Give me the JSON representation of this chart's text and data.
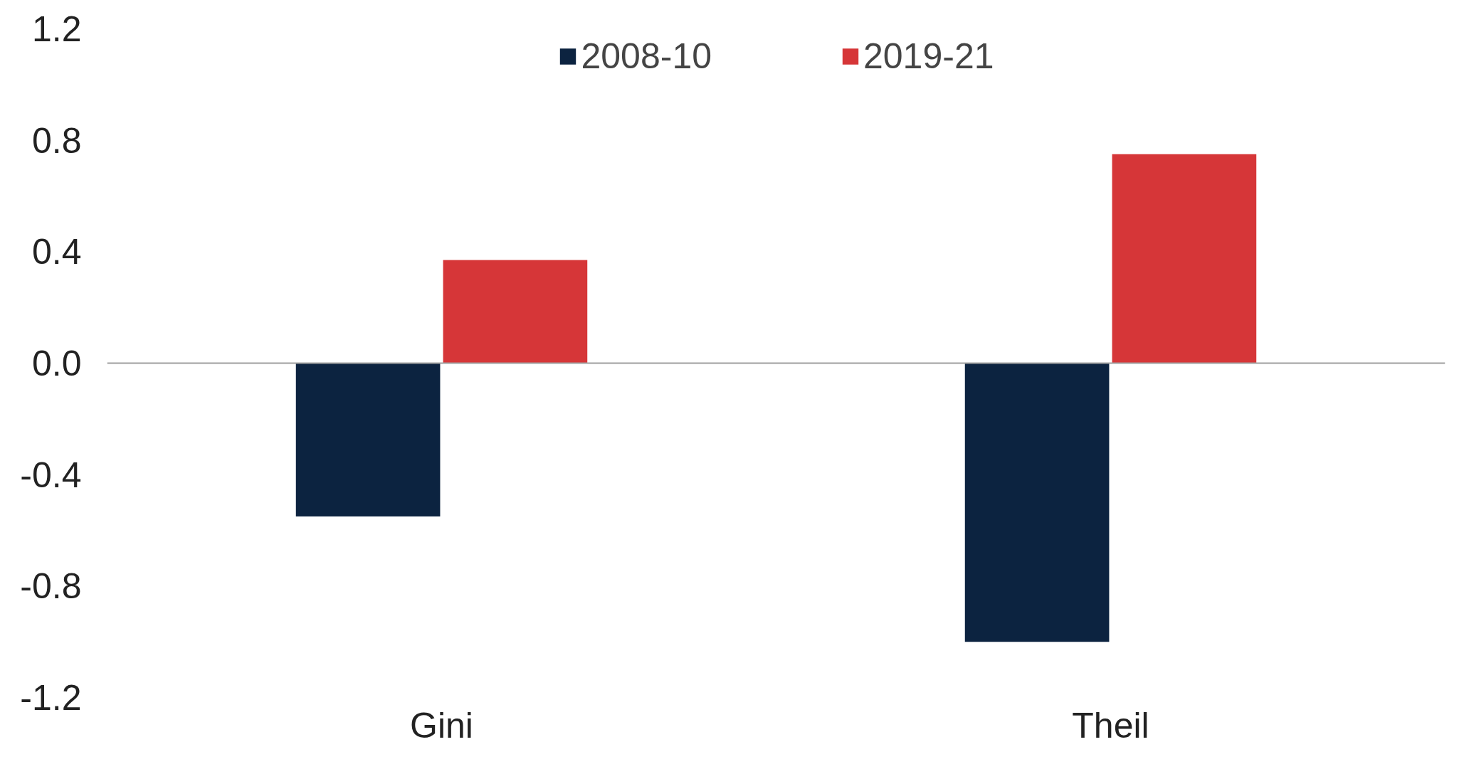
{
  "chart_data": {
    "type": "bar",
    "categories": [
      "Gini",
      "Theil"
    ],
    "series": [
      {
        "name": "2008-10",
        "color": "#0c2340",
        "values": [
          -0.55,
          -1.0
        ]
      },
      {
        "name": "2019-21",
        "color": "#d63638",
        "values": [
          0.37,
          0.75
        ]
      }
    ],
    "ylim": [
      -1.2,
      1.2
    ],
    "yticks": [
      {
        "value": -1.2,
        "label": "-1.2"
      },
      {
        "value": -0.8,
        "label": "-0.8"
      },
      {
        "value": -0.4,
        "label": "-0.4"
      },
      {
        "value": 0,
        "label": "0.0"
      },
      {
        "value": 0.4,
        "label": "0.4"
      },
      {
        "value": 0.8,
        "label": "0.8"
      },
      {
        "value": 1.2,
        "label": "1.2"
      }
    ],
    "grid": false,
    "legend": "top",
    "ref_lines": [
      {
        "axis": "y",
        "value": 0,
        "color": "#a0a0a0"
      }
    ]
  }
}
